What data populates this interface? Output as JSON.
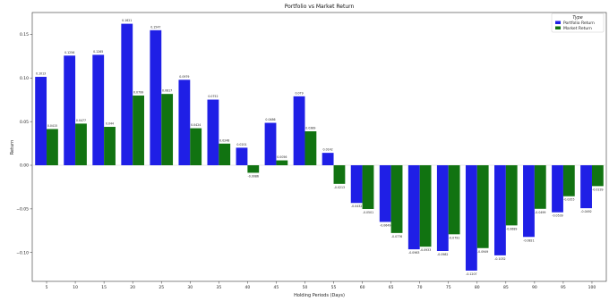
{
  "chart_data": {
    "type": "bar",
    "title": "Portfolio vs Market Return",
    "xlabel": "Holding Periods (Days)",
    "ylabel": "Return",
    "categories": [
      "5",
      "10",
      "15",
      "20",
      "25",
      "30",
      "35",
      "40",
      "45",
      "50",
      "55",
      "60",
      "65",
      "70",
      "75",
      "80",
      "85",
      "90",
      "95",
      "100"
    ],
    "series": [
      {
        "name": "Portfolio Return",
        "color": "#1f1fe6",
        "values": [
          0.1013,
          0.1256,
          0.1265,
          0.1621,
          0.1547,
          0.0979,
          0.0752,
          0.0201,
          0.0486,
          0.079,
          0.0142,
          -0.0432,
          -0.0649,
          -0.0963,
          -0.0982,
          -0.1207,
          -0.1032,
          -0.0821,
          -0.0539,
          -0.0492
        ],
        "labels": [
          "0.1013",
          "0.1256",
          "0.1265",
          "0.1621",
          "0.1547",
          "0.0979",
          "0.0752",
          "0.0201",
          "0.0486",
          "0.079",
          "0.0142",
          "-0.0432",
          "-0.0649",
          "-0.0963",
          "-0.0982",
          "-0.1207",
          "-0.1032",
          "-0.0821",
          "-0.0539",
          "-0.0492"
        ]
      },
      {
        "name": "Market Return",
        "color": "#117311",
        "values": [
          0.0415,
          0.0477,
          0.044,
          0.0799,
          0.0817,
          0.0424,
          0.0248,
          -0.0086,
          0.0056,
          0.0389,
          -0.0213,
          -0.0501,
          -0.0776,
          -0.0933,
          -0.0791,
          -0.0949,
          -0.0689,
          -0.0499,
          -0.0355,
          -0.0239
        ],
        "labels": [
          "0.0415",
          "0.0477",
          "0.044",
          "0.0799",
          "0.0817",
          "0.0424",
          "0.0248",
          "-0.0086",
          "0.0056",
          "0.0389",
          "-0.0213",
          "-0.0501",
          "-0.0776",
          "-0.0933",
          "-0.0791",
          "-0.0949",
          "-0.0689",
          "-0.0499",
          "-0.0355",
          "-0.0239"
        ]
      }
    ],
    "ylim": [
      -0.133,
      0.175
    ],
    "yticks": [
      -0.1,
      -0.05,
      0.0,
      0.05,
      0.1,
      0.15
    ],
    "ytick_labels": [
      "−0.10",
      "−0.05",
      "0.00",
      "0.05",
      "0.10",
      "0.15"
    ],
    "grid": false,
    "legend": {
      "title": "Type",
      "placement": "top-right"
    }
  }
}
